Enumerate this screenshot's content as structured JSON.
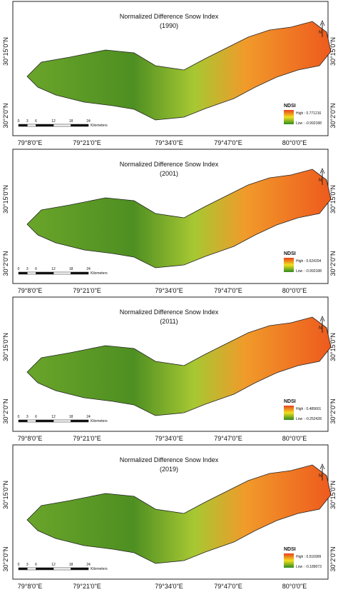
{
  "graticule": {
    "x_labels": [
      "79°8'0\"E",
      "79°21'0\"E",
      "79°34'0\"E",
      "79°47'0\"E",
      "80°0'0\"E"
    ],
    "y_labels": [
      "30°15'0\"N",
      "30°2'0\"N"
    ]
  },
  "scale_bar": {
    "ticks": [
      0,
      3,
      6,
      12,
      18,
      24
    ],
    "unit": "Kilometers"
  },
  "legend_title": "NDSI",
  "north_label": "N",
  "panels": [
    {
      "title": "Normalized Difference Snow Index",
      "year": "(1990)",
      "high": "High : 0.771216",
      "low": "Low : -0.992188"
    },
    {
      "title": "Normalized Difference Snow Index",
      "year": "(2001)",
      "high": "High : 0.624204",
      "low": "Low : -0.992188"
    },
    {
      "title": "Normalized Difference Snow Index",
      "year": "(2011)",
      "high": "High : 0.489601",
      "low": "Low : -0.252428"
    },
    {
      "title": "Normalized Difference Snow Index",
      "year": "(2019)",
      "high": "High : 0.516999",
      "low": "Low : -0.189073"
    }
  ]
}
